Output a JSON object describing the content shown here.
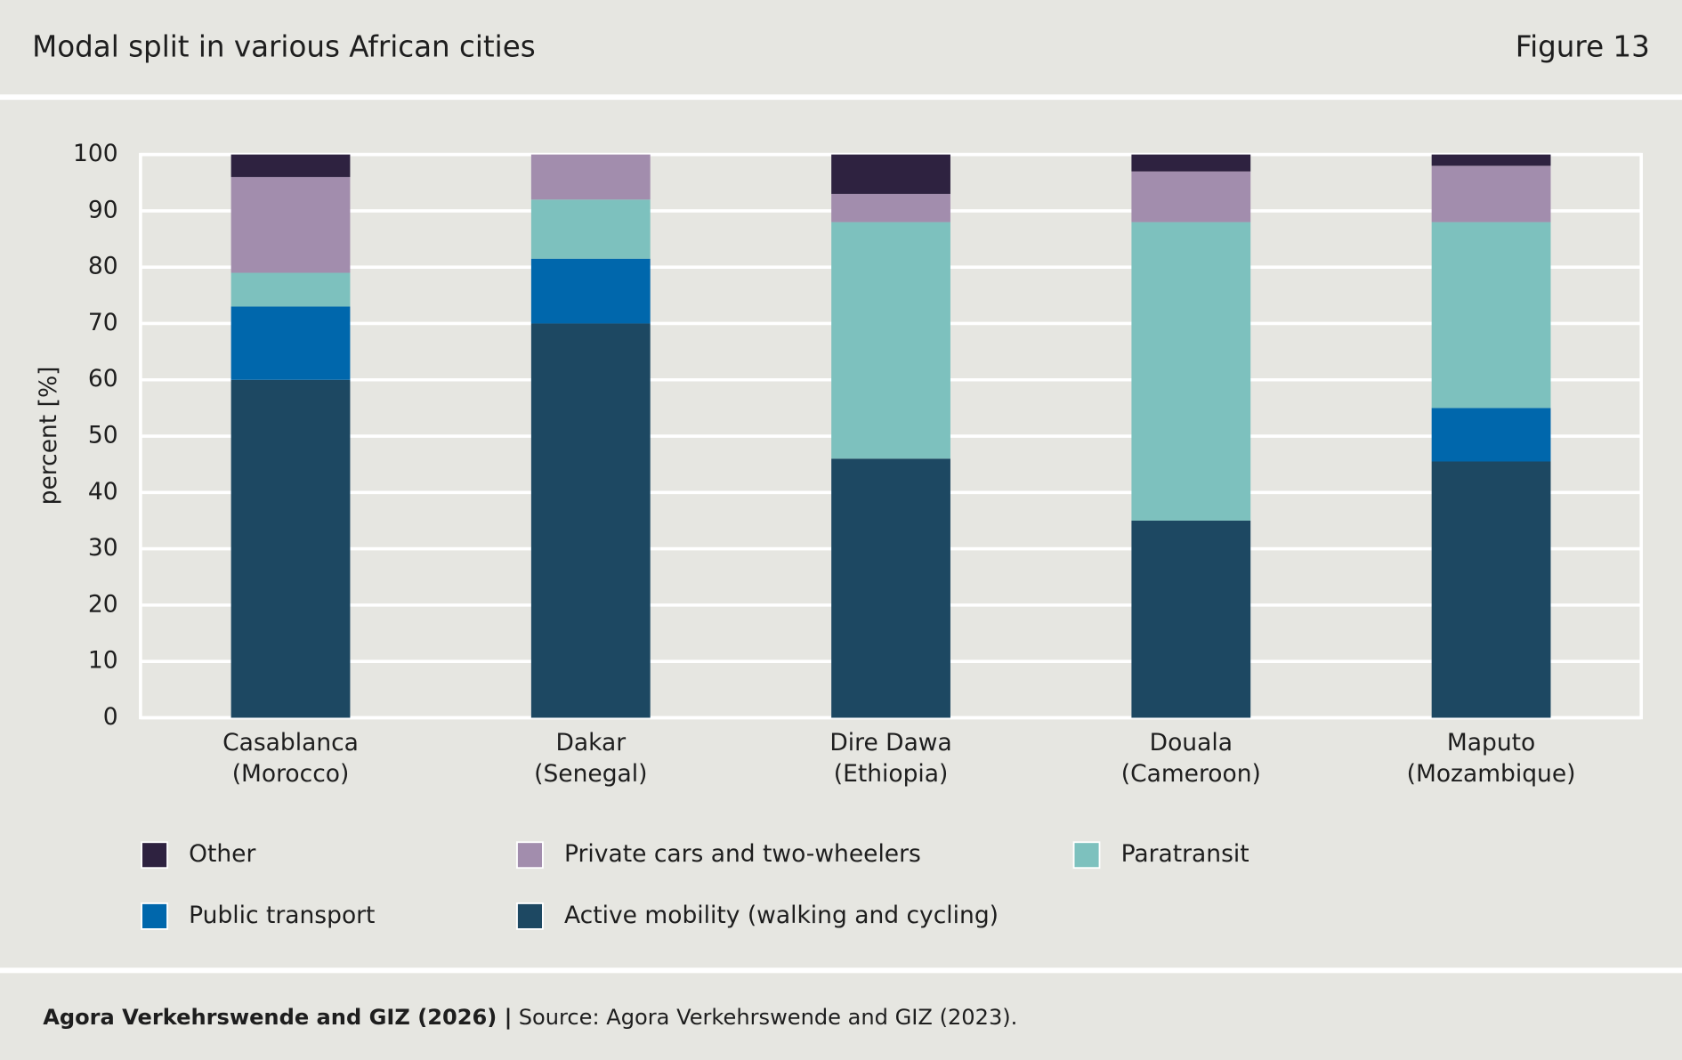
{
  "header": {
    "title": "Modal split in various African cities",
    "figure": "Figure 13"
  },
  "chart_data": {
    "type": "stacked-bar",
    "ylabel": "percent [%]",
    "categories": [
      [
        "Casablanca",
        "(Morocco)"
      ],
      [
        "Dakar",
        "(Senegal)"
      ],
      [
        "Dire Dawa",
        "(Ethiopia)"
      ],
      [
        "Douala",
        "(Cameroon)"
      ],
      [
        "Maputo",
        "(Mozambique)"
      ]
    ],
    "series": [
      {
        "name": "Active mobility (walking and cycling)",
        "color": "#1d4862",
        "values": [
          60,
          70,
          46,
          35,
          45.5
        ]
      },
      {
        "name": "Public transport",
        "color": "#0067ac",
        "values": [
          13,
          11.5,
          0,
          0,
          9.5
        ]
      },
      {
        "name": "Paratransit",
        "color": "#7dc1be",
        "values": [
          6,
          10.5,
          42,
          53,
          33
        ]
      },
      {
        "name": "Private cars and two-wheelers",
        "color": "#a28dad",
        "values": [
          17,
          8,
          5,
          9,
          10
        ]
      },
      {
        "name": "Other",
        "color": "#2e2240",
        "values": [
          4,
          0,
          7,
          3,
          2
        ]
      }
    ],
    "ylim": [
      0,
      100
    ],
    "yticks": [
      0,
      10,
      20,
      30,
      40,
      50,
      60,
      70,
      80,
      90,
      100
    ],
    "grid": true
  },
  "footer": {
    "credit": "Agora Verkehrswende and GIZ (2026) |",
    "source": "Source: Agora Verkehrswende and GIZ (2023)."
  }
}
